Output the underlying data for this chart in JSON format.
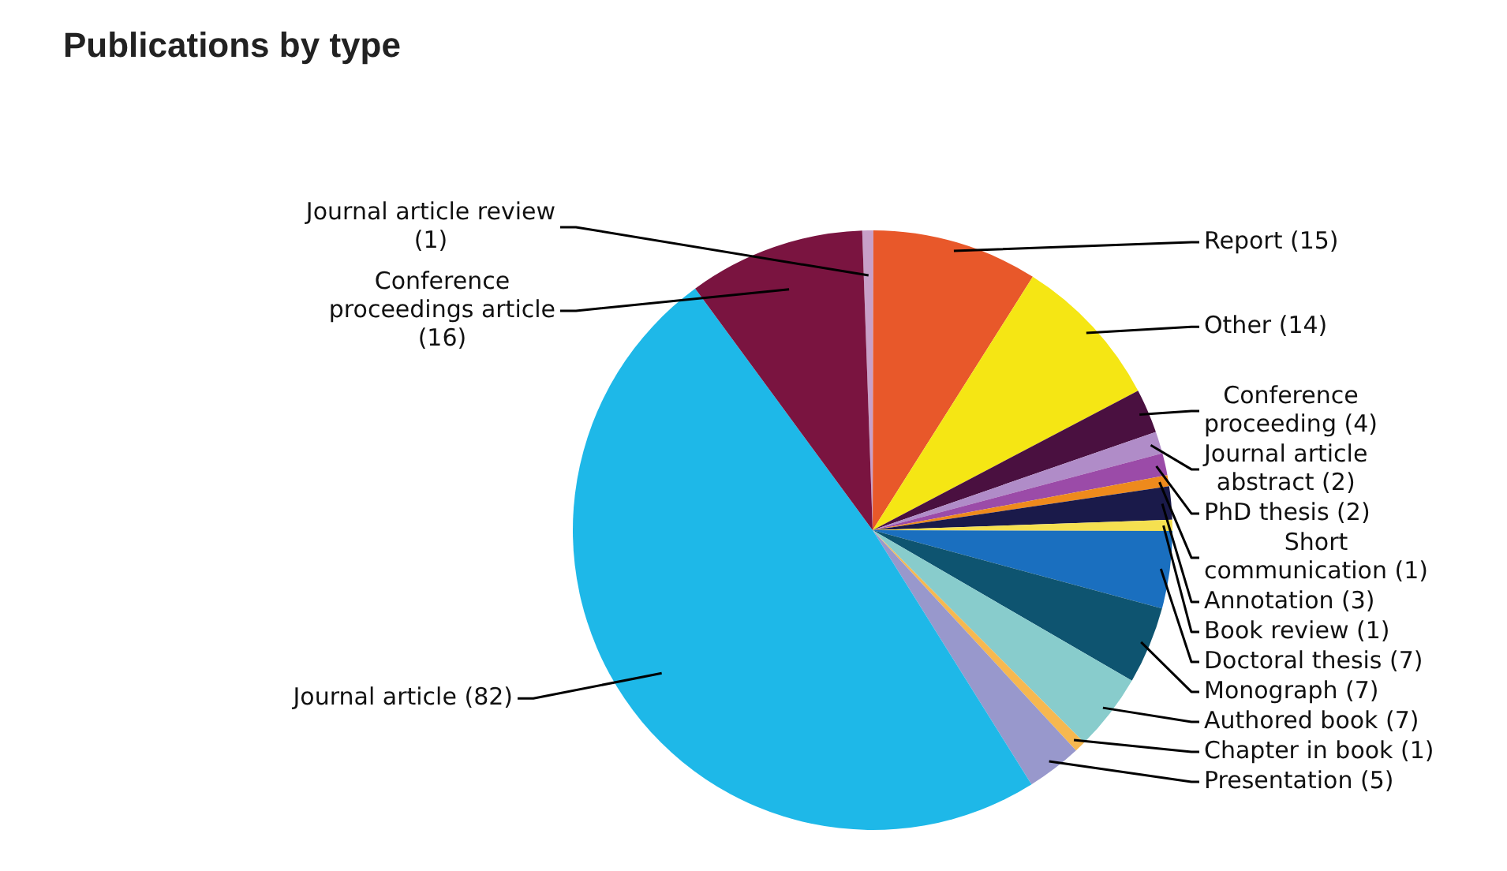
{
  "chart_data": {
    "type": "pie",
    "title": "Publications by type",
    "categories": [
      "Journal article review (1)",
      "Report (15)",
      "Other (14)",
      "Conference proceeding (4)",
      "Journal article abstract (2)",
      "PhD thesis (2)",
      "Short communication (1)",
      "Annotation (3)",
      "Book review (1)",
      "Doctoral thesis (7)",
      "Monograph (7)",
      "Authored book (7)",
      "Chapter in book (1)",
      "Presentation (5)",
      "Journal article (82)",
      "Conference proceedings article (16)"
    ],
    "values": [
      1,
      15,
      14,
      4,
      2,
      2,
      1,
      3,
      1,
      7,
      7,
      7,
      1,
      5,
      82,
      16
    ],
    "colors": [
      "#c8a0c8",
      "#e8582a",
      "#f5e614",
      "#4a1040",
      "#b08cc8",
      "#9b4ba8",
      "#ee8a1c",
      "#1a1a4a",
      "#f5e050",
      "#1a6fbf",
      "#0e5470",
      "#88cccc",
      "#f6b850",
      "#9898cc",
      "#1eb8e8",
      "#7a1440"
    ],
    "legend": false
  }
}
